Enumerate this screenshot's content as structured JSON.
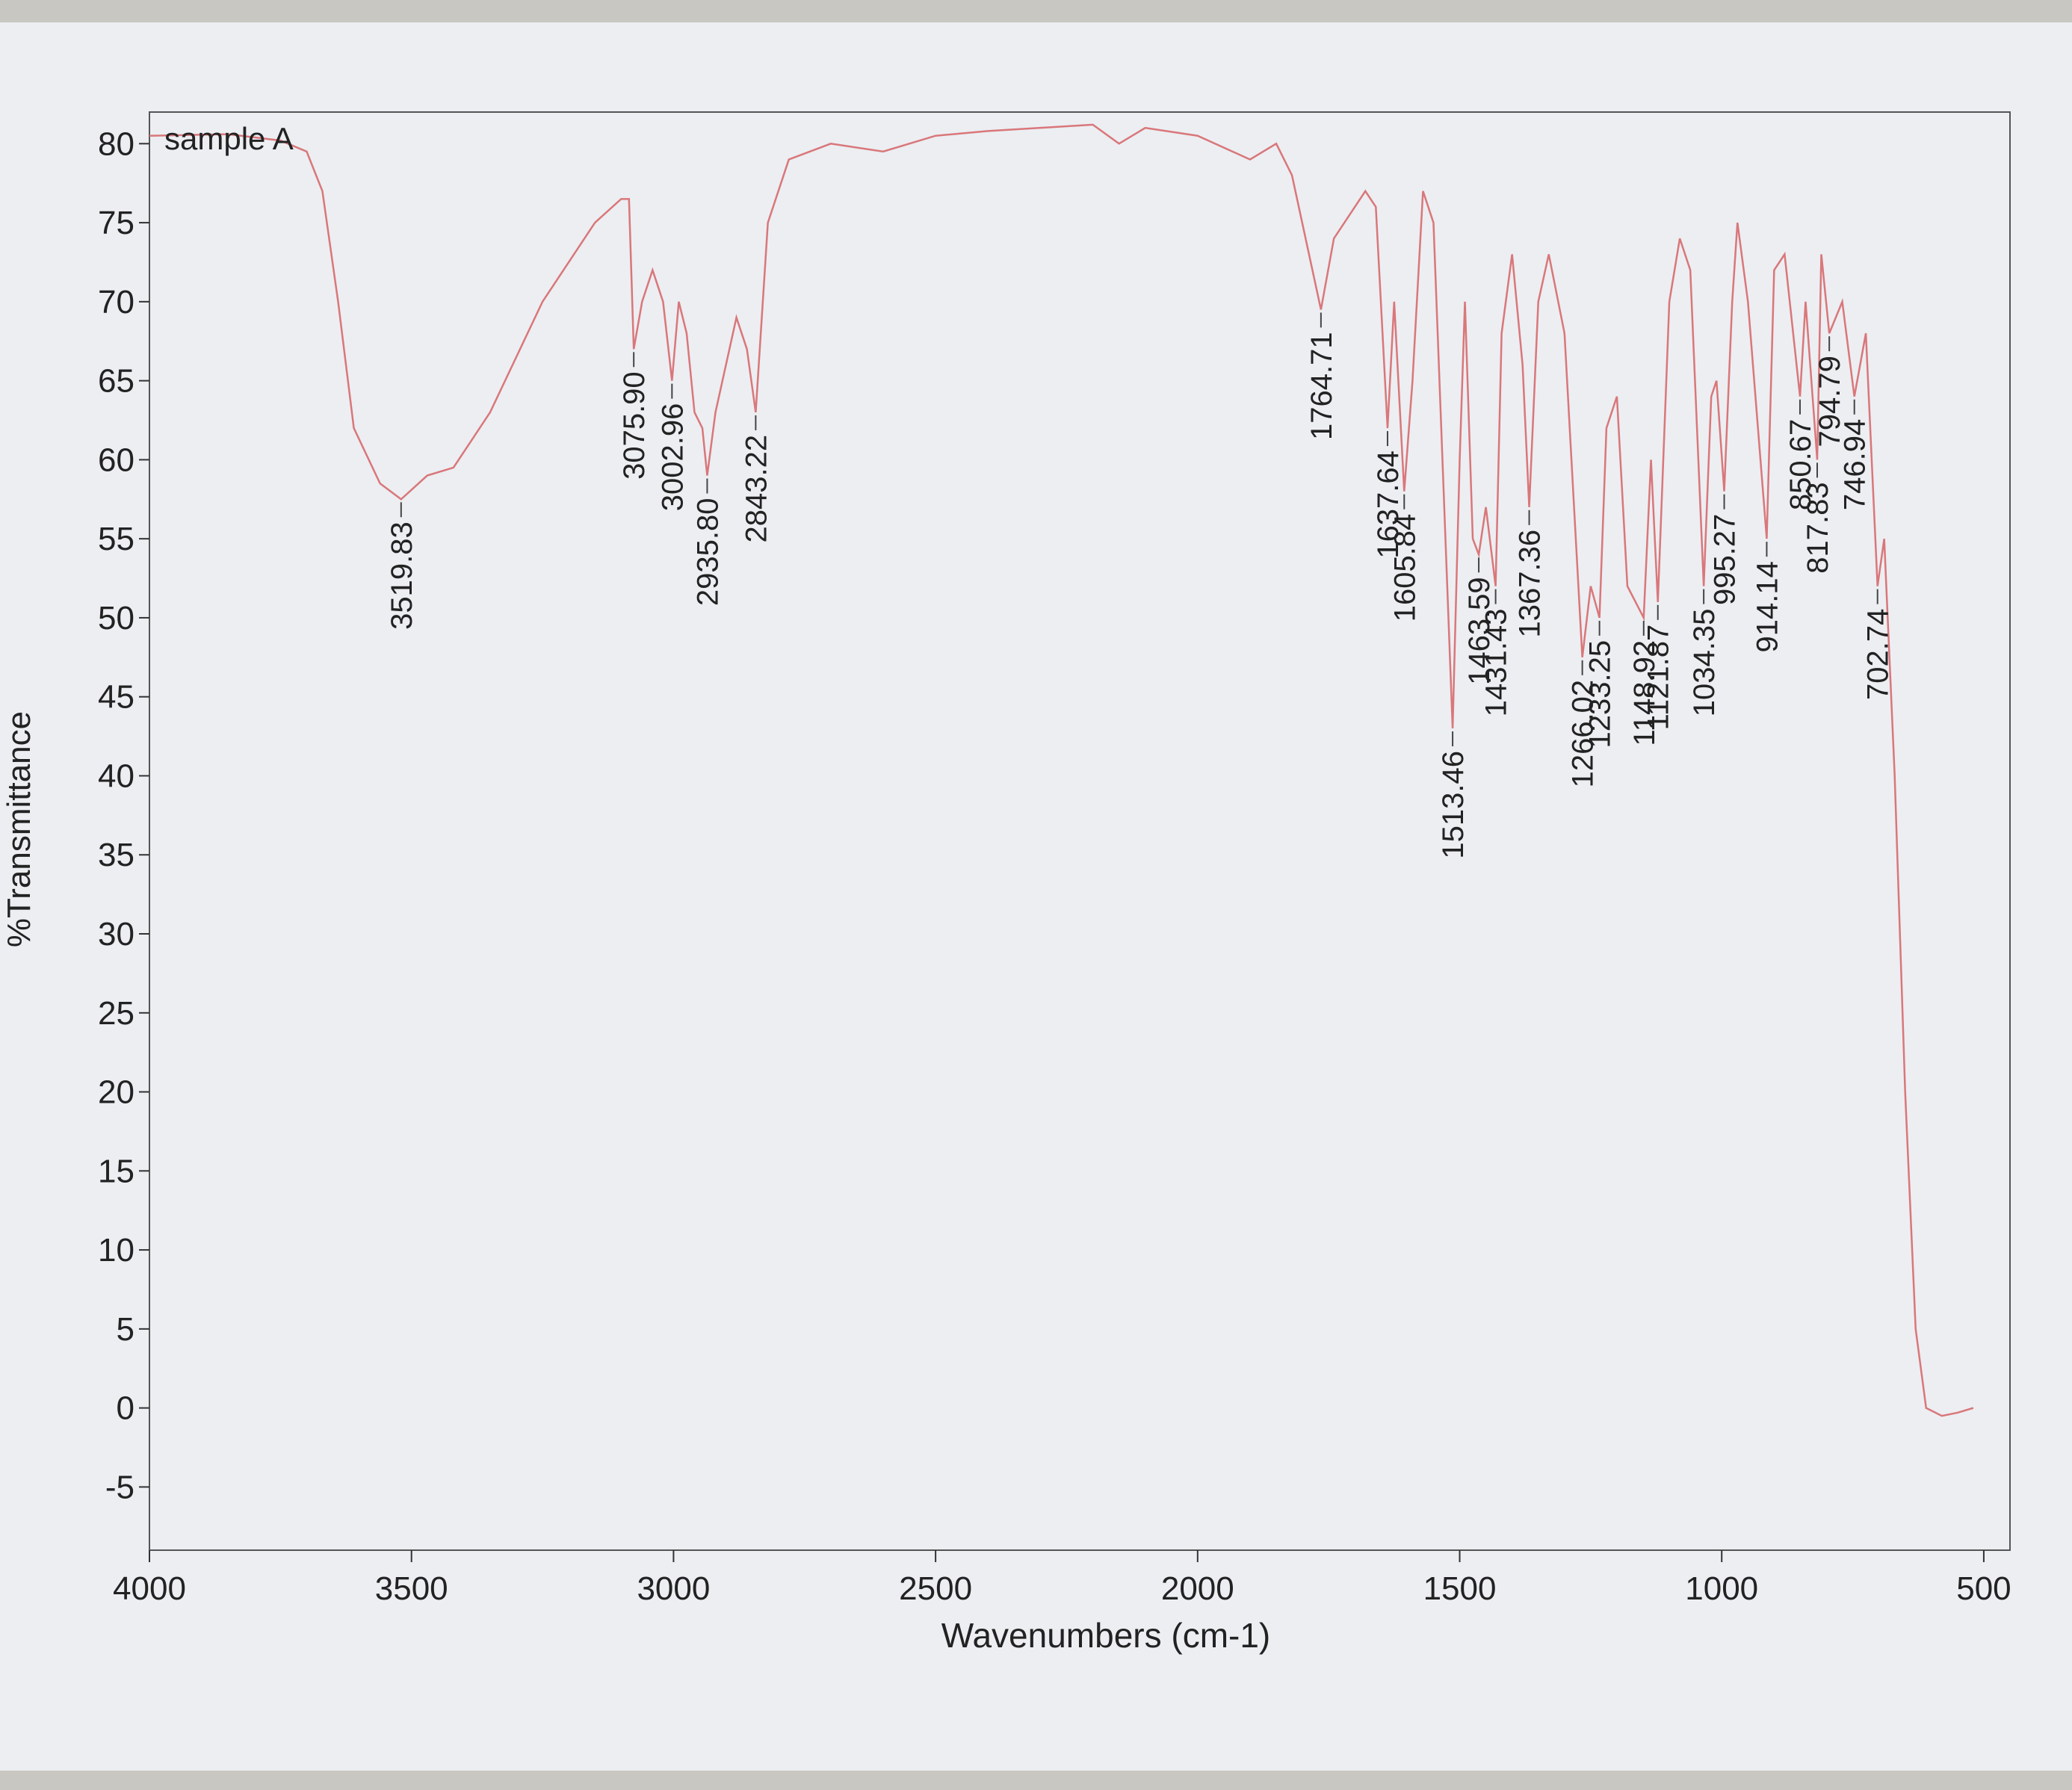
{
  "chart_data": {
    "type": "line",
    "series_label": "sample A",
    "x_label": "Wavenumbers (cm-1)",
    "y_label": "%Transmittance",
    "xlim": [
      4000,
      450
    ],
    "ylim": [
      -9,
      82
    ],
    "xticks": [
      4000,
      3500,
      3000,
      2500,
      2000,
      1500,
      1000,
      500
    ],
    "yticks": [
      -5,
      0,
      5,
      10,
      15,
      20,
      25,
      30,
      35,
      40,
      45,
      50,
      55,
      60,
      65,
      70,
      75,
      80
    ],
    "series": [
      {
        "name": "sample A",
        "color": "#d9777a",
        "x": [
          4000,
          3850,
          3750,
          3700,
          3670,
          3640,
          3610,
          3560,
          3519.83,
          3470,
          3420,
          3350,
          3250,
          3150,
          3100,
          3085,
          3075.9,
          3060,
          3040,
          3020,
          3002.96,
          2990,
          2975,
          2960,
          2945,
          2935.8,
          2920,
          2880,
          2860,
          2843.22,
          2820,
          2780,
          2700,
          2600,
          2500,
          2400,
          2300,
          2200,
          2150,
          2100,
          2000,
          1900,
          1850,
          1820,
          1764.71,
          1740,
          1700,
          1680,
          1660,
          1637.64,
          1625,
          1605.84,
          1590,
          1570,
          1550,
          1513.46,
          1500,
          1490,
          1475,
          1463.59,
          1450,
          1431.43,
          1420,
          1400,
          1380,
          1367.36,
          1350,
          1330,
          1300,
          1266.02,
          1250,
          1233.25,
          1220,
          1200,
          1180,
          1148.92,
          1135,
          1121.87,
          1100,
          1080,
          1060,
          1034.35,
          1020,
          1010,
          995.27,
          980,
          970,
          950,
          914.14,
          900,
          880,
          850.67,
          840,
          817.83,
          810,
          794.79,
          770,
          746.94,
          725,
          702.74,
          690,
          670,
          650,
          630,
          610,
          580,
          550,
          520
        ],
        "values": [
          80.5,
          80.6,
          80.2,
          79.5,
          77,
          70,
          62,
          58.5,
          57.5,
          59,
          59.5,
          63,
          70,
          75,
          76.5,
          76.5,
          67,
          70,
          72,
          70,
          65,
          70,
          68,
          63,
          62,
          59,
          63,
          69,
          67,
          63,
          75,
          79,
          80,
          79.5,
          80.5,
          80.8,
          81,
          81.2,
          80,
          81,
          80.5,
          79,
          80,
          78,
          69.5,
          74,
          76,
          77,
          76,
          62,
          70,
          58,
          65,
          77,
          75,
          43,
          60,
          70,
          55,
          54,
          57,
          52,
          68,
          73,
          66,
          57,
          70,
          73,
          68,
          47.5,
          52,
          50,
          62,
          64,
          52,
          50,
          60,
          51,
          70,
          74,
          72,
          52,
          64,
          65,
          58,
          70,
          75,
          70,
          55,
          72,
          73,
          64,
          70,
          60,
          73,
          68,
          70,
          64,
          68,
          52,
          55,
          40,
          20,
          5,
          0,
          -0.5,
          -0.3,
          0
        ]
      }
    ],
    "peaks": [
      {
        "x": 3519.83,
        "label": "3519.83",
        "y": 57.5
      },
      {
        "x": 3075.9,
        "label": "3075.90",
        "y": 67
      },
      {
        "x": 3002.96,
        "label": "3002.96",
        "y": 65
      },
      {
        "x": 2935.8,
        "label": "2935.80",
        "y": 59
      },
      {
        "x": 2843.22,
        "label": "2843.22",
        "y": 63
      },
      {
        "x": 1764.71,
        "label": "1764.71",
        "y": 69.5
      },
      {
        "x": 1637.64,
        "label": "1637.64",
        "y": 62
      },
      {
        "x": 1605.84,
        "label": "1605.84",
        "y": 58
      },
      {
        "x": 1513.46,
        "label": "1513.46",
        "y": 43
      },
      {
        "x": 1463.59,
        "label": "1463.59",
        "y": 54
      },
      {
        "x": 1431.43,
        "label": "1431.43",
        "y": 52
      },
      {
        "x": 1367.36,
        "label": "1367.36",
        "y": 57
      },
      {
        "x": 1266.02,
        "label": "1266.02",
        "y": 47.5
      },
      {
        "x": 1233.25,
        "label": "1233.25",
        "y": 50
      },
      {
        "x": 1148.92,
        "label": "1148.92",
        "y": 50
      },
      {
        "x": 1121.87,
        "label": "1121.87",
        "y": 51
      },
      {
        "x": 1034.35,
        "label": "1034.35",
        "y": 52
      },
      {
        "x": 995.27,
        "label": "995.27",
        "y": 58
      },
      {
        "x": 914.14,
        "label": "914.14",
        "y": 55
      },
      {
        "x": 850.67,
        "label": "850.67",
        "y": 64
      },
      {
        "x": 817.83,
        "label": "817.83",
        "y": 60
      },
      {
        "x": 794.79,
        "label": "794.79",
        "y": 68
      },
      {
        "x": 746.94,
        "label": "746.94",
        "y": 64
      },
      {
        "x": 702.74,
        "label": "702.74",
        "y": 52
      }
    ]
  }
}
